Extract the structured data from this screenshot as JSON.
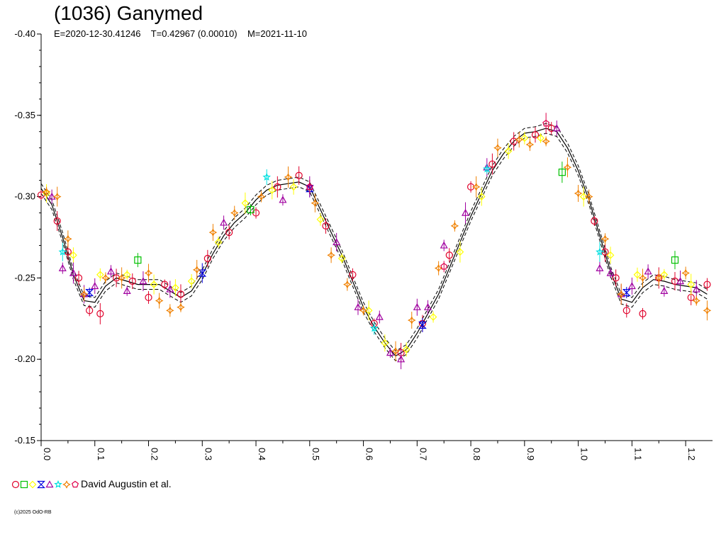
{
  "chart_data": {
    "type": "scatter",
    "title": "(1036) Ganymed",
    "subtitle": "E=2020-12-30.41246    T=0.42967 (0.00010)    M=2021-11-10",
    "xlabel": "",
    "ylabel": "",
    "xlim": [
      0.0,
      1.25
    ],
    "ylim": [
      -0.4,
      -0.15
    ],
    "y_inverted": true,
    "x_ticks": [
      "0.0",
      "0.1",
      "0.2",
      "0.3",
      "0.4",
      "0.5",
      "0.6",
      "0.7",
      "0.8",
      "0.9",
      "1.0",
      "1.1",
      "1.2"
    ],
    "y_ticks": [
      "-0.40",
      "-0.35",
      "-0.30",
      "-0.25",
      "-0.20",
      "-0.15"
    ],
    "grid": false,
    "legend_label": "David Augustin et al.",
    "legend_placement": "bottom-left",
    "copyright": "(c)2025 OdO-RB",
    "fit_curve": {
      "x": [
        0.0,
        0.02,
        0.04,
        0.06,
        0.08,
        0.1,
        0.12,
        0.14,
        0.16,
        0.18,
        0.2,
        0.22,
        0.24,
        0.26,
        0.28,
        0.3,
        0.32,
        0.34,
        0.36,
        0.38,
        0.4,
        0.42,
        0.44,
        0.46,
        0.48,
        0.5,
        0.52,
        0.54,
        0.56,
        0.58,
        0.6,
        0.62,
        0.64,
        0.66,
        0.68,
        0.7,
        0.72,
        0.74,
        0.76,
        0.78,
        0.8,
        0.82,
        0.84,
        0.86,
        0.88,
        0.9,
        0.92,
        0.94,
        0.96,
        0.98,
        1.0,
        1.02,
        1.04,
        1.06,
        1.08,
        1.1,
        1.12,
        1.14,
        1.16,
        1.18,
        1.2,
        1.22,
        1.24
      ],
      "y": [
        -0.305,
        -0.295,
        -0.275,
        -0.252,
        -0.236,
        -0.235,
        -0.245,
        -0.25,
        -0.248,
        -0.246,
        -0.246,
        -0.246,
        -0.242,
        -0.238,
        -0.242,
        -0.252,
        -0.265,
        -0.276,
        -0.284,
        -0.29,
        -0.298,
        -0.304,
        -0.307,
        -0.308,
        -0.309,
        -0.306,
        -0.292,
        -0.278,
        -0.264,
        -0.248,
        -0.232,
        -0.22,
        -0.21,
        -0.202,
        -0.206,
        -0.216,
        -0.228,
        -0.24,
        -0.256,
        -0.272,
        -0.288,
        -0.302,
        -0.316,
        -0.326,
        -0.334,
        -0.339,
        -0.34,
        -0.342,
        -0.34,
        -0.33,
        -0.316,
        -0.298,
        -0.276,
        -0.254,
        -0.237,
        -0.235,
        -0.244,
        -0.249,
        -0.248,
        -0.246,
        -0.245,
        -0.244,
        -0.24
      ]
    },
    "series": [
      {
        "symbol": "circle",
        "color": "#e0002a",
        "x": [
          0.0,
          0.03,
          0.05,
          0.07,
          0.09,
          0.11,
          0.14,
          0.17,
          0.2,
          0.23,
          0.26,
          0.31,
          0.35,
          0.4,
          0.44,
          0.48,
          0.53,
          0.58,
          0.62,
          0.67,
          0.71,
          0.76,
          0.8,
          0.84,
          0.88,
          0.92,
          0.95,
          1.03,
          1.05,
          1.07,
          1.09,
          1.12,
          1.15,
          1.18,
          1.21,
          1.24
        ],
        "y": [
          -0.301,
          -0.285,
          -0.266,
          -0.25,
          -0.23,
          -0.228,
          -0.25,
          -0.248,
          -0.238,
          -0.246,
          -0.24,
          -0.262,
          -0.278,
          -0.29,
          -0.306,
          -0.313,
          -0.282,
          -0.252,
          -0.222,
          -0.204,
          -0.222,
          -0.264,
          -0.306,
          -0.32,
          -0.334,
          -0.338,
          -0.342,
          -0.285,
          -0.266,
          -0.25,
          -0.23,
          -0.228,
          -0.25,
          -0.248,
          -0.238,
          -0.246
        ]
      },
      {
        "symbol": "square",
        "color": "#00c000",
        "x": [
          0.18,
          0.39,
          0.97,
          1.18
        ],
        "y": [
          -0.261,
          -0.292,
          -0.315,
          -0.261
        ]
      },
      {
        "symbol": "diamond",
        "color": "#ffff00",
        "x": [
          0.01,
          0.06,
          0.11,
          0.16,
          0.21,
          0.25,
          0.28,
          0.33,
          0.38,
          0.43,
          0.47,
          0.52,
          0.56,
          0.61,
          0.64,
          0.68,
          0.73,
          0.78,
          0.82,
          0.87,
          0.9,
          0.93,
          1.01,
          1.06,
          1.11,
          1.16,
          1.21
        ],
        "y": [
          -0.302,
          -0.264,
          -0.252,
          -0.252,
          -0.246,
          -0.244,
          -0.248,
          -0.272,
          -0.296,
          -0.304,
          -0.306,
          -0.286,
          -0.262,
          -0.23,
          -0.21,
          -0.206,
          -0.226,
          -0.266,
          -0.3,
          -0.328,
          -0.336,
          -0.336,
          -0.3,
          -0.264,
          -0.252,
          -0.252,
          -0.246
        ]
      },
      {
        "symbol": "hourglass",
        "color": "#0000e0",
        "x": [
          0.09,
          0.3,
          0.5,
          0.71,
          1.09
        ],
        "y": [
          -0.241,
          -0.253,
          -0.305,
          -0.221,
          -0.241
        ]
      },
      {
        "symbol": "triangle",
        "color": "#a000a0",
        "x": [
          0.02,
          0.04,
          0.06,
          0.08,
          0.1,
          0.13,
          0.16,
          0.19,
          0.24,
          0.34,
          0.45,
          0.5,
          0.55,
          0.59,
          0.63,
          0.65,
          0.67,
          0.7,
          0.72,
          0.75,
          0.79,
          0.83,
          0.96,
          1.04,
          1.06,
          1.08,
          1.1,
          1.13,
          1.16,
          1.19,
          1.22
        ],
        "y": [
          -0.3,
          -0.256,
          -0.253,
          -0.24,
          -0.245,
          -0.254,
          -0.242,
          -0.248,
          -0.243,
          -0.284,
          -0.298,
          -0.306,
          -0.272,
          -0.232,
          -0.226,
          -0.204,
          -0.2,
          -0.232,
          -0.232,
          -0.27,
          -0.29,
          -0.318,
          -0.342,
          -0.256,
          -0.253,
          -0.24,
          -0.245,
          -0.254,
          -0.242,
          -0.248,
          -0.243
        ]
      },
      {
        "symbol": "star",
        "color": "#00e0e0",
        "x": [
          0.04,
          0.42,
          0.62,
          0.83,
          1.04
        ],
        "y": [
          -0.266,
          -0.312,
          -0.219,
          -0.317,
          -0.266
        ]
      },
      {
        "symbol": "cross-diamond",
        "color": "#f08000",
        "x": [
          0.01,
          0.03,
          0.05,
          0.08,
          0.12,
          0.15,
          0.2,
          0.22,
          0.24,
          0.26,
          0.29,
          0.32,
          0.36,
          0.41,
          0.46,
          0.51,
          0.54,
          0.57,
          0.6,
          0.66,
          0.69,
          0.74,
          0.77,
          0.81,
          0.85,
          0.89,
          0.91,
          0.94,
          0.98,
          1.0,
          1.02,
          1.05,
          1.08,
          1.12,
          1.15,
          1.2,
          1.22,
          1.24
        ],
        "y": [
          -0.303,
          -0.3,
          -0.274,
          -0.24,
          -0.25,
          -0.25,
          -0.253,
          -0.236,
          -0.23,
          -0.232,
          -0.255,
          -0.278,
          -0.29,
          -0.3,
          -0.312,
          -0.296,
          -0.264,
          -0.246,
          -0.23,
          -0.205,
          -0.224,
          -0.256,
          -0.282,
          -0.306,
          -0.33,
          -0.335,
          -0.332,
          -0.334,
          -0.318,
          -0.302,
          -0.3,
          -0.274,
          -0.24,
          -0.25,
          -0.25,
          -0.253,
          -0.236,
          -0.23
        ]
      },
      {
        "symbol": "pentagon",
        "color": "#e0004a",
        "x": [
          0.5,
          0.75,
          0.94
        ],
        "y": [
          -0.306,
          -0.257,
          -0.345
        ]
      }
    ]
  }
}
